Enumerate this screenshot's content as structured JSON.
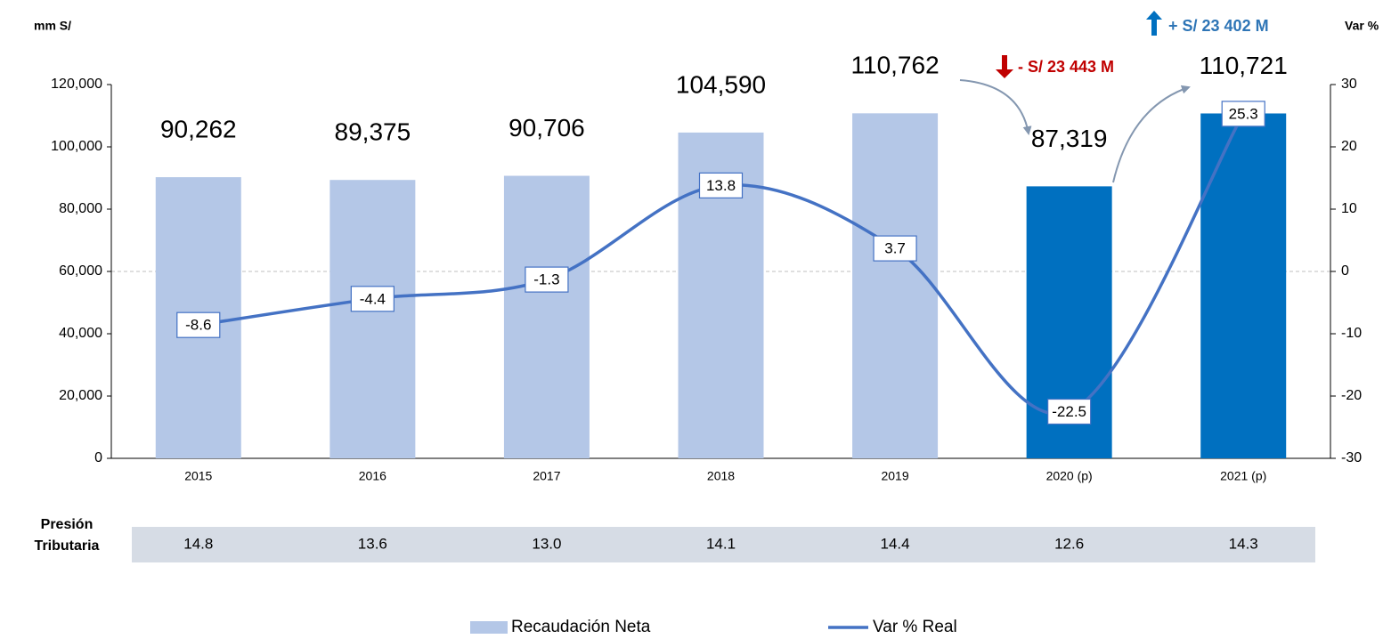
{
  "chart_data": {
    "type": "combo",
    "annotations": [
      "mm S/",
      "Var %",
      "+ S/ 23 402 M",
      "- S/ 23 443 M"
    ],
    "categories": [
      "2015",
      "2016",
      "2017",
      "2018",
      "2019",
      "2020 (p)",
      "2021 (p)"
    ],
    "series": [
      {
        "name": "Recaudación Neta",
        "type": "bar",
        "colors": [
          "#b4c7e7",
          "#b4c7e7",
          "#b4c7e7",
          "#b4c7e7",
          "#b4c7e7",
          "#0070c0",
          "#0070c0"
        ],
        "values": [
          90262,
          89375,
          90706,
          104590,
          110762,
          87319,
          110721
        ],
        "value_labels": [
          "90,262",
          "89,375",
          "90,706",
          "104,590",
          "110,762",
          "87,319",
          "110,721"
        ]
      },
      {
        "name": "Var % Real",
        "type": "line",
        "color": "#4472c4",
        "axis": "y2",
        "values": [
          -8.6,
          -4.4,
          -1.3,
          13.8,
          3.7,
          -22.5,
          25.3
        ]
      }
    ],
    "ylim": [
      0,
      120000
    ],
    "yticks": [
      0,
      {
        "value": 20000,
        "label": "20,000"
      },
      {
        "value": 40000,
        "label": "40,000"
      },
      {
        "value": 60000,
        "label": "60,000"
      },
      {
        "value": 80000,
        "label": "80,000"
      },
      {
        "value": 100000,
        "label": "100,000"
      },
      {
        "value": 120000,
        "label": "120,000"
      }
    ],
    "y2lim": [
      -30,
      30
    ],
    "y2ticks": [
      -30,
      -20,
      -10,
      0,
      10,
      20,
      30
    ],
    "legend": "bottom"
  },
  "tax_pressure": {
    "label": [
      "Presión",
      "Tributaria"
    ],
    "values": [
      "14.8",
      "13.6",
      "13.0",
      "14.1",
      "14.4",
      "12.6",
      "14.3"
    ]
  }
}
